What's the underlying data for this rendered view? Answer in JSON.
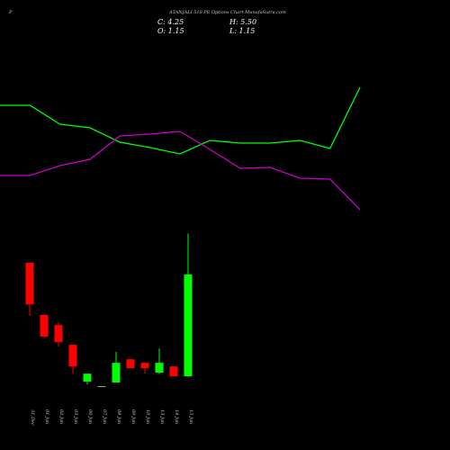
{
  "chart_data": [
    {
      "type": "candlestick",
      "title_prefix": "P",
      "title": "ATANJALI 510 PE Options Chart MunafaSutra.com",
      "ohlc_labels": [
        "C: 4.25",
        "H: 5.50",
        "O: 1.15",
        "L: 1.15"
      ],
      "categories": [
        "31 Dec",
        "01 Jan",
        "02 Jan",
        "03 Jan",
        "06 Jan",
        "07 Jan",
        "08 Jan",
        "09 Jan",
        "10 Jan",
        "13 Jan",
        "14 Jan",
        "15 Jan"
      ],
      "open": [
        4.61,
        3.02,
        2.71,
        2.11,
        0.99,
        0.85,
        0.96,
        1.67,
        1.56,
        1.26,
        1.45,
        1.15
      ],
      "high": [
        4.61,
        3.02,
        2.8,
        2.11,
        1.23,
        0.85,
        1.89,
        1.67,
        1.56,
        2.0,
        1.45,
        5.5
      ],
      "low": [
        2.99,
        2.33,
        2.06,
        1.23,
        0.9,
        0.85,
        0.96,
        1.4,
        1.23,
        1.23,
        1.15,
        1.15
      ],
      "close": [
        3.34,
        2.36,
        2.19,
        1.45,
        1.23,
        0.85,
        1.56,
        1.4,
        1.4,
        1.56,
        1.15,
        4.25
      ],
      "up_color": "#00ff00",
      "down_color": "#ff0000",
      "ylim": [
        0.55,
        5.76
      ]
    },
    {
      "type": "line",
      "ylim": [
        0,
        100
      ],
      "series": [
        {
          "color": "#00ff00",
          "values": [
            66.5,
            66.5,
            56,
            54,
            46,
            43,
            39.5,
            47,
            45.5,
            45.5,
            47,
            42.5,
            76.5
          ]
        },
        {
          "color": "#cc00cc",
          "values": [
            27.5,
            27.5,
            33,
            36.5,
            49.5,
            50.5,
            52,
            42,
            31.5,
            32,
            26,
            25.5,
            8.5
          ]
        }
      ]
    }
  ]
}
